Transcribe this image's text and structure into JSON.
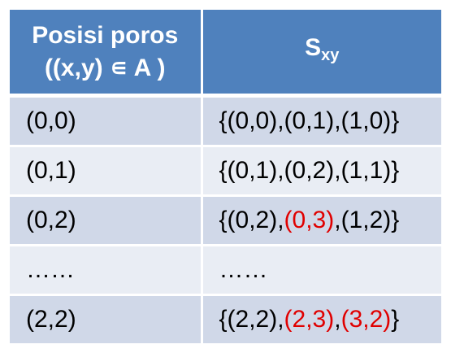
{
  "header": {
    "col1_line1": "Posisi poros",
    "col1_line2": "((x,y) ∊ A )",
    "col2_main": "S",
    "col2_sub": "xy"
  },
  "rows": [
    {
      "pos": "(0,0)",
      "s": [
        {
          "t": "{(0,0),(0,1),(1,0)}"
        }
      ]
    },
    {
      "pos": "(0,1)",
      "s": [
        {
          "t": "{(0,1),(0,2),(1,1)}"
        }
      ]
    },
    {
      "pos": "(0,2)",
      "s": [
        {
          "t": "{(0,2),"
        },
        {
          "t": "(0,3)",
          "hl": true
        },
        {
          "t": ",(1,2)}"
        }
      ]
    },
    {
      "pos": "……",
      "s": [
        {
          "t": "……"
        }
      ]
    },
    {
      "pos": "(2,2)",
      "s": [
        {
          "t": "{(2,2),"
        },
        {
          "t": "(2,3)",
          "hl": true
        },
        {
          "t": ","
        },
        {
          "t": "(3,2)",
          "hl": true
        },
        {
          "t": "}"
        }
      ]
    }
  ],
  "colors": {
    "header_bg": "#4f81bd",
    "row_dark": "#d0d8e8",
    "row_light": "#e9edf4",
    "highlight": "#e00000"
  }
}
